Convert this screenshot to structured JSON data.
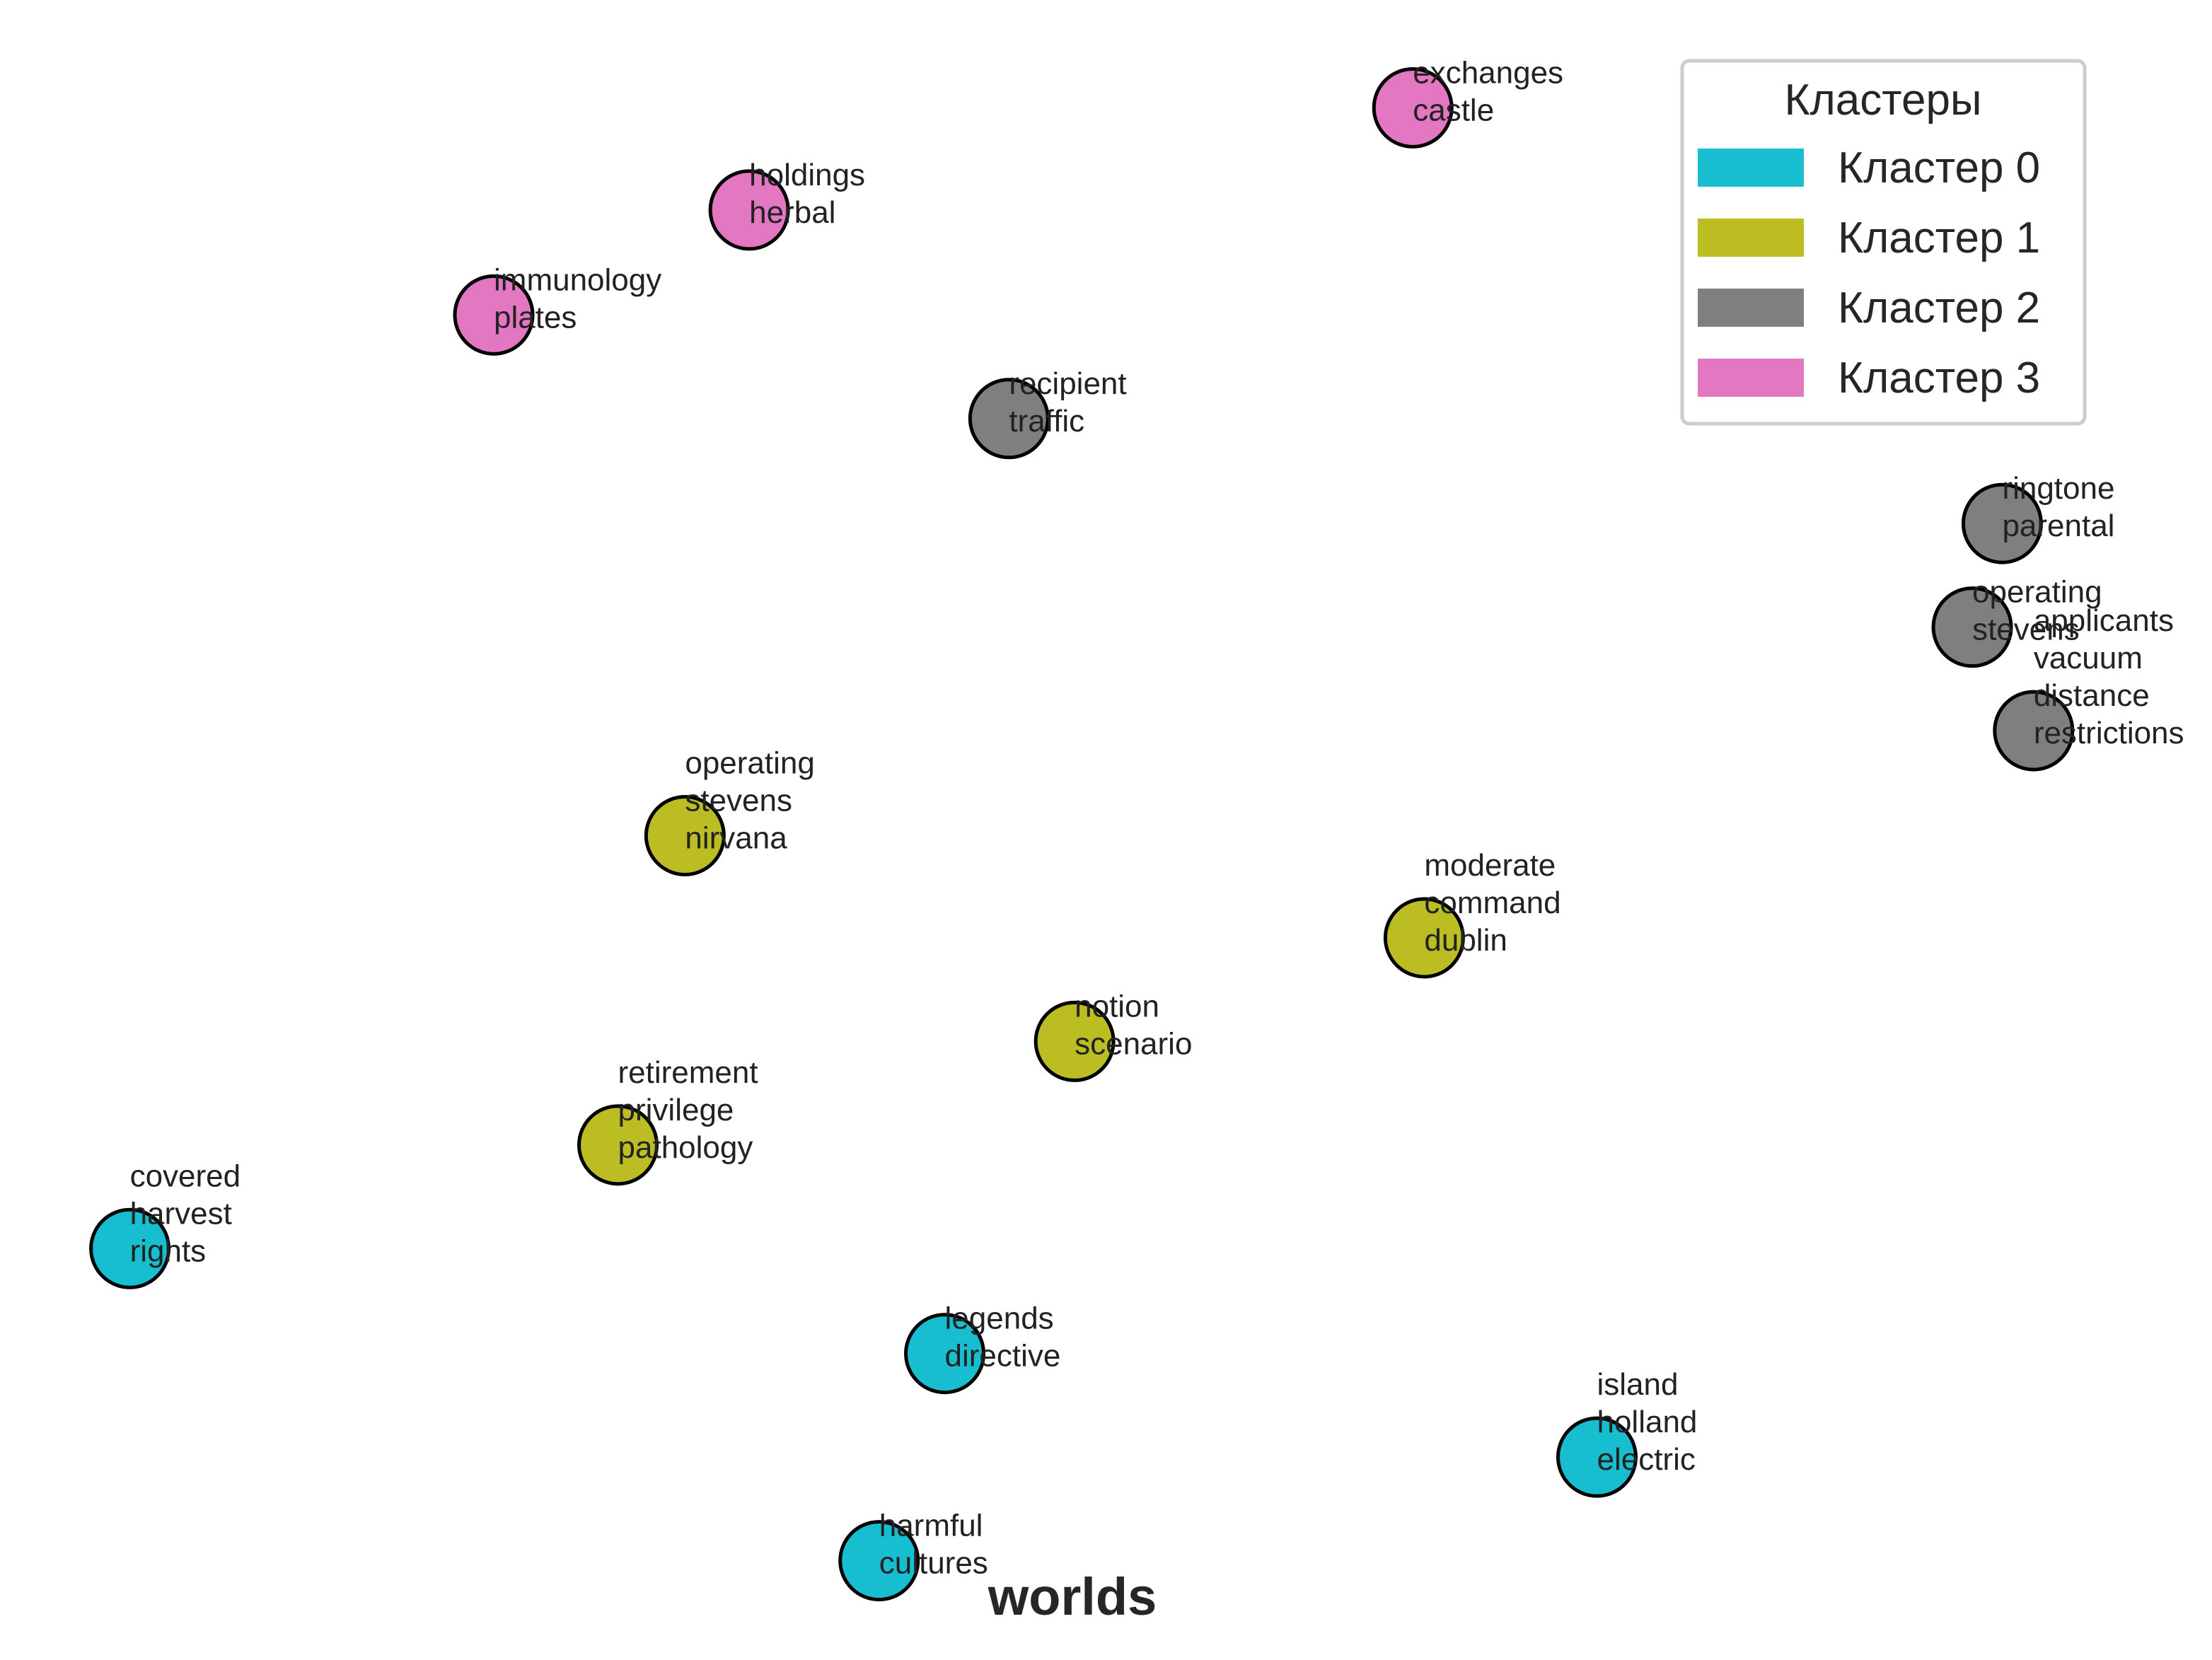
{
  "chart_data": {
    "type": "scatter",
    "title": "",
    "xlabel": "worlds",
    "ylabel": "",
    "xlim": [
      0,
      1550
    ],
    "ylim": [
      1170,
      0
    ],
    "grid": false,
    "legend": {
      "title": "Кластеры",
      "placement": "top-right",
      "entries": [
        {
          "label": "Кластер 0",
          "color": "#17becf"
        },
        {
          "label": "Кластер 1",
          "color": "#bcbd22"
        },
        {
          "label": "Кластер 2",
          "color": "#7f7f7f"
        },
        {
          "label": "Кластер 3",
          "color": "#e377c2"
        }
      ]
    },
    "points": [
      {
        "x": 990,
        "y": 76,
        "cluster": 3,
        "words": [
          "exchanges",
          "castle"
        ]
      },
      {
        "x": 525,
        "y": 148,
        "cluster": 3,
        "words": [
          "holdings",
          "herbal"
        ]
      },
      {
        "x": 346,
        "y": 222,
        "cluster": 3,
        "words": [
          "immunology",
          "plates"
        ]
      },
      {
        "x": 707,
        "y": 295,
        "cluster": 2,
        "words": [
          "recipient",
          "traffic"
        ]
      },
      {
        "x": 1403,
        "y": 369,
        "cluster": 2,
        "words": [
          "ringtone",
          "parental"
        ]
      },
      {
        "x": 1382,
        "y": 442,
        "cluster": 2,
        "words": [
          "operating",
          "stevens"
        ]
      },
      {
        "x": 1425,
        "y": 515,
        "cluster": 2,
        "words": [
          "applicants",
          "vacuum",
          "distance",
          "restrictions"
        ]
      },
      {
        "x": 480,
        "y": 589,
        "cluster": 1,
        "words": [
          "operating",
          "stevens",
          "nirvana"
        ]
      },
      {
        "x": 998,
        "y": 661,
        "cluster": 1,
        "words": [
          "moderate",
          "command",
          "dublin"
        ]
      },
      {
        "x": 753,
        "y": 734,
        "cluster": 1,
        "words": [
          "notion",
          "scenario"
        ]
      },
      {
        "x": 433,
        "y": 807,
        "cluster": 1,
        "words": [
          "retirement",
          "privilege",
          "pathology"
        ]
      },
      {
        "x": 91,
        "y": 880,
        "cluster": 0,
        "words": [
          "covered",
          "harvest",
          "rights"
        ]
      },
      {
        "x": 662,
        "y": 954,
        "cluster": 0,
        "words": [
          "legends",
          "directive"
        ]
      },
      {
        "x": 1119,
        "y": 1027,
        "cluster": 0,
        "words": [
          "island",
          "holland",
          "electric"
        ]
      },
      {
        "x": 616,
        "y": 1100,
        "cluster": 0,
        "words": [
          "harmful",
          "cultures"
        ]
      }
    ]
  }
}
